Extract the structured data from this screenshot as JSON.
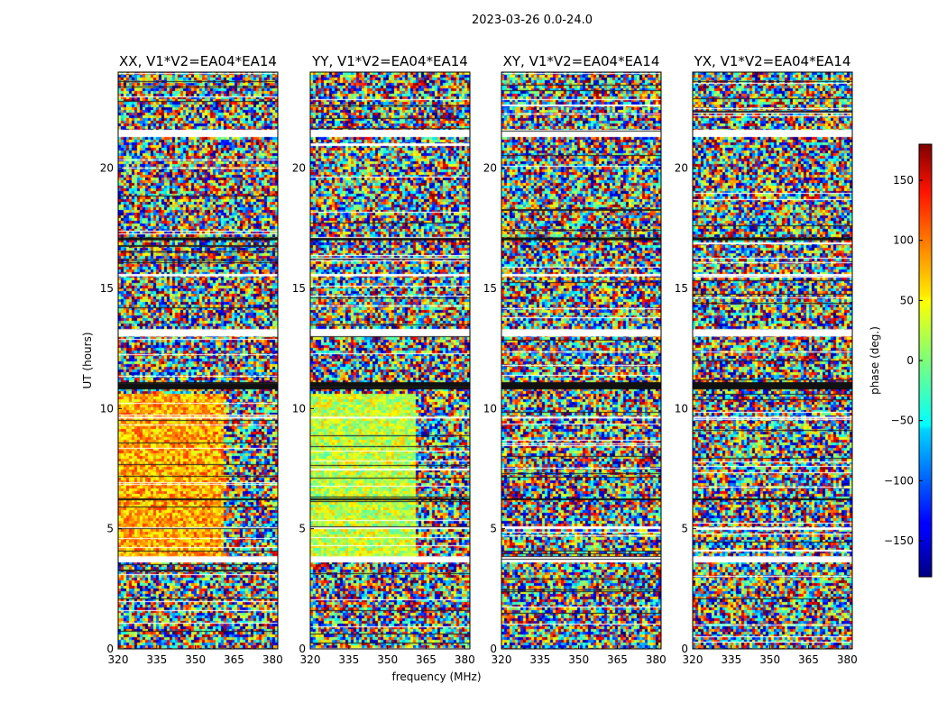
{
  "figure": {
    "suptitle": "2023-03-26 0.0-24.0",
    "xlabel": "frequency (MHz)",
    "ylabel": "UT (hours)"
  },
  "chart_data": {
    "type": "heatmap",
    "colormap": "jet",
    "xlim": [
      320,
      382
    ],
    "ylim": [
      0,
      24
    ],
    "xticks": [
      320,
      335,
      350,
      365,
      380
    ],
    "yticks": [
      0,
      5,
      10,
      15,
      20
    ],
    "panels": [
      {
        "title": "XX, V1*V2=EA04*EA14",
        "low_noise_zone": {
          "ut_start": 3.8,
          "ut_end": 10.7,
          "freq_end": 360,
          "phase_center": 75
        }
      },
      {
        "title": "YY, V1*V2=EA04*EA14",
        "low_noise_zone": {
          "ut_start": 3.8,
          "ut_end": 10.7,
          "freq_end": 360,
          "phase_center": 25
        }
      },
      {
        "title": "XY, V1*V2=EA04*EA14",
        "low_noise_zone": null
      },
      {
        "title": "YX, V1*V2=EA04*EA14",
        "low_noise_zone": null
      }
    ],
    "data_gaps_ut": [
      [
        21.3,
        21.6
      ],
      [
        17.0,
        17.12
      ],
      [
        15.5,
        15.6
      ],
      [
        13.0,
        13.3
      ],
      [
        10.8,
        11.1
      ],
      [
        3.6,
        3.85
      ],
      [
        5.0,
        5.06
      ],
      [
        6.2,
        6.26
      ],
      [
        9.6,
        9.66
      ]
    ],
    "colorbar": {
      "label": "phase (deg.)",
      "range": [
        -180,
        180
      ],
      "ticks": [
        150,
        100,
        50,
        0,
        -50,
        -100,
        -150
      ],
      "tick_labels": [
        "150",
        "100",
        "50",
        "0",
        "−50",
        "−100",
        "−150"
      ]
    }
  }
}
